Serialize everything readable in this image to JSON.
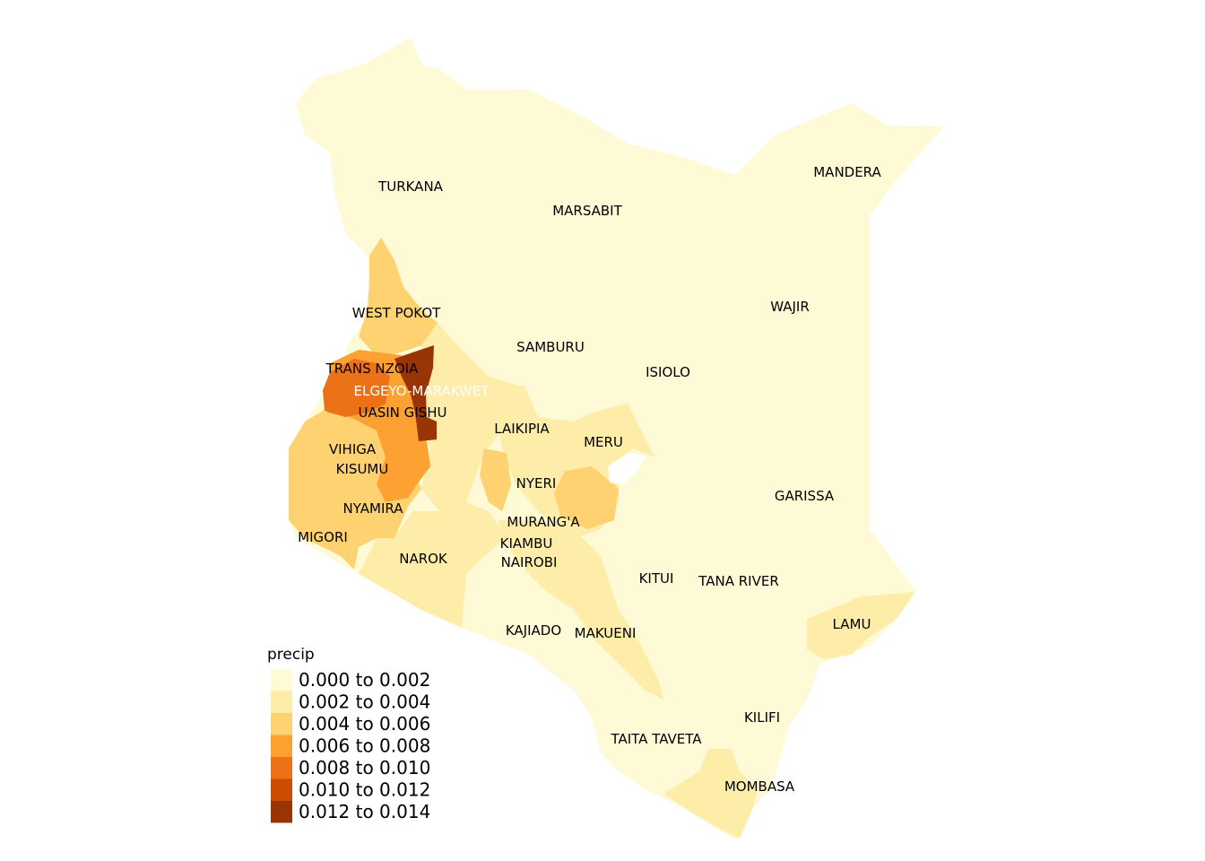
{
  "legend": {
    "title": "precip",
    "classes": [
      {
        "label": "0.000 to 0.002",
        "color": "#FFFAD6"
      },
      {
        "label": "0.002 to 0.004",
        "color": "#FEEDA8"
      },
      {
        "label": "0.004 to 0.006",
        "color": "#FED171"
      },
      {
        "label": "0.006 to 0.008",
        "color": "#FEA133"
      },
      {
        "label": "0.008 to 0.010",
        "color": "#ED7116"
      },
      {
        "label": "0.010 to 0.012",
        "color": "#CC4C02"
      },
      {
        "label": "0.012 to 0.014",
        "color": "#993404"
      }
    ]
  },
  "counties": [
    {
      "name": "TURKANA",
      "class": 0
    },
    {
      "name": "MARSABIT",
      "class": 0
    },
    {
      "name": "MANDERA",
      "class": 0
    },
    {
      "name": "WAJIR",
      "class": 0
    },
    {
      "name": "WEST POKOT",
      "class": 2
    },
    {
      "name": "SAMBURU",
      "class": 0
    },
    {
      "name": "ISIOLO",
      "class": 0
    },
    {
      "name": "TRANS NZOIA",
      "class": 3
    },
    {
      "name": "ELGEYO-MARAKWET",
      "class": 6
    },
    {
      "name": "UASIN GISHU",
      "class": 4
    },
    {
      "name": "LAIKIPIA",
      "class": 1
    },
    {
      "name": "MERU",
      "class": 1
    },
    {
      "name": "VIHIGA",
      "class": 2
    },
    {
      "name": "KISUMU",
      "class": 2
    },
    {
      "name": "NYERI",
      "class": 1
    },
    {
      "name": "GARISSA",
      "class": 0
    },
    {
      "name": "NYAMIRA",
      "class": 2
    },
    {
      "name": "MURANG'A",
      "class": 1
    },
    {
      "name": "MIGORI",
      "class": 2
    },
    {
      "name": "KIAMBU",
      "class": 1
    },
    {
      "name": "NAROK",
      "class": 1
    },
    {
      "name": "NAIROBI",
      "class": 1
    },
    {
      "name": "KITUI",
      "class": 0
    },
    {
      "name": "TANA RIVER",
      "class": 0
    },
    {
      "name": "LAMU",
      "class": 1
    },
    {
      "name": "KAJIADO",
      "class": 0
    },
    {
      "name": "MAKUENI",
      "class": 1
    },
    {
      "name": "KILIFI",
      "class": 0
    },
    {
      "name": "TAITA TAVETA",
      "class": 0
    },
    {
      "name": "MOMBASA",
      "class": 1
    }
  ]
}
